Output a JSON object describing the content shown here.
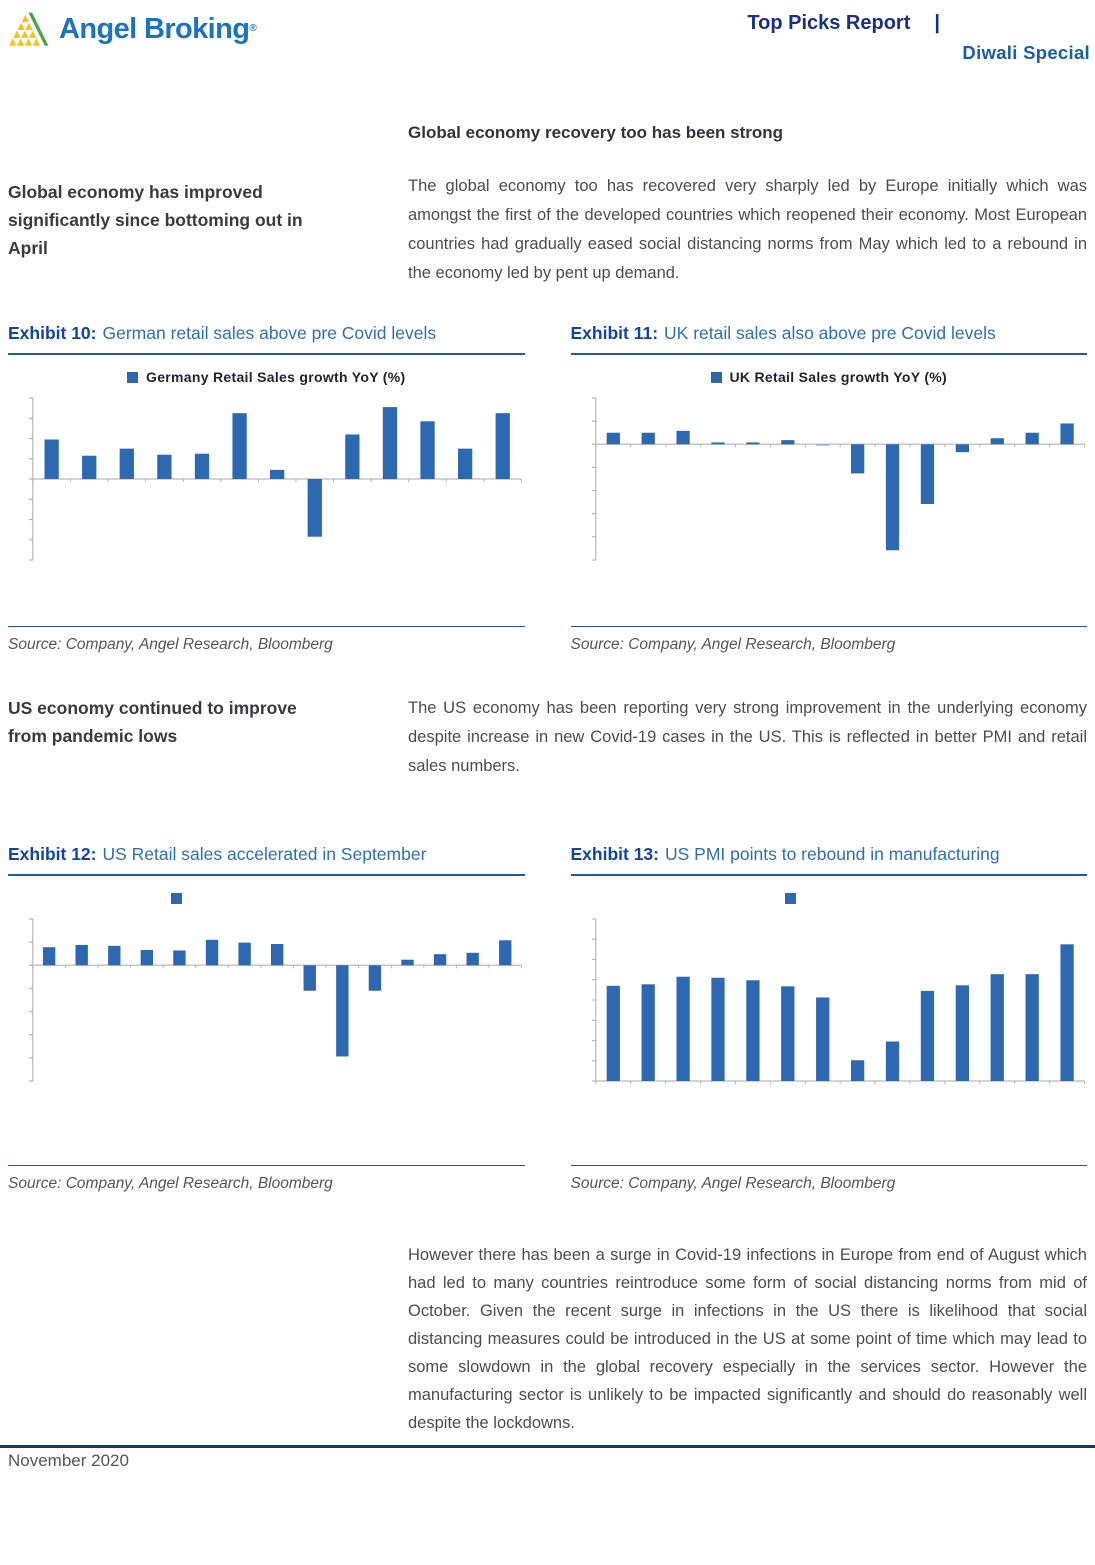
{
  "header": {
    "logo_text": "Angel Broking",
    "logo_reg": "®",
    "report_type": "Top Picks Report",
    "separator": "|",
    "report_subtitle": "Diwali Special"
  },
  "section1": {
    "sidebar_note": "Global economy has improved significantly since bottoming out in April",
    "heading": "Global economy recovery too has been strong",
    "body": "The global economy too has recovered very sharply led by Europe initially which was amongst the first of the developed countries which reopened their economy. Most European countries had gradually eased social distancing norms from May which led to a rebound in the economy led by pent up demand."
  },
  "section2": {
    "sidebar_note": "US economy continued to improve from pandemic lows",
    "body": "The US economy has been reporting very strong improvement in the underlying economy despite increase in new Covid-19 cases in the US. This is reflected in better PMI and retail sales numbers."
  },
  "section3": {
    "body": "However there has been a surge in Covid-19 infections in Europe from end of August which had led to many countries reintroduce some form of social distancing norms from mid of October. Given the recent surge in infections in the US there is likelihood that social distancing measures could be introduced in the US at some point of time which may lead to some slowdown in the global recovery especially in the services sector. However the manufacturing sector is unlikely to be impacted significantly and should do reasonably well despite the lockdowns."
  },
  "exhibits": [
    {
      "label": "Exhibit 10:",
      "title": "German retail sales above pre Covid levels",
      "legend": "Germany Retail Sales growth YoY (%)",
      "source": "Source: Company, Angel Research, Bloomberg"
    },
    {
      "label": "Exhibit 11:",
      "title": "UK retail sales also above pre Covid levels",
      "legend": "UK Retail Sales growth YoY (%)",
      "source": "Source: Company, Angel Research, Bloomberg"
    },
    {
      "label": "Exhibit 12:",
      "title": "US Retail sales accelerated in September",
      "legend": "",
      "source": "Source: Company, Angel Research, Bloomberg"
    },
    {
      "label": "Exhibit 13:",
      "title": "US PMI points to rebound in manufacturing",
      "legend": "",
      "source": "Source: Company, Angel Research, Bloomberg"
    }
  ],
  "chart_data": [
    {
      "type": "bar",
      "title": "German retail sales above pre Covid levels",
      "legend": "Germany Retail Sales growth YoY (%)",
      "values": [
        3.9,
        2.3,
        3.0,
        2.4,
        2.5,
        6.5,
        0.9,
        -5.7,
        4.4,
        7.1,
        5.7,
        3.0,
        6.5
      ],
      "x_labels_shown": false,
      "y_labels_shown": false,
      "ylim": [
        -8,
        8
      ],
      "tick_step": 2,
      "grid": false,
      "legend_position": "top-center",
      "bar_color": "#2E68B1"
    },
    {
      "type": "bar",
      "title": "UK retail sales also above pre Covid levels",
      "legend": "UK Retail Sales growth YoY (%)",
      "values": [
        2.5,
        2.5,
        2.9,
        0.4,
        0.4,
        0.9,
        -0.3,
        -6.3,
        -22.9,
        -12.9,
        -1.7,
        1.3,
        2.5,
        4.5
      ],
      "x_labels_shown": false,
      "y_labels_shown": false,
      "ylim": [
        -25,
        10
      ],
      "tick_step": 5,
      "grid": false,
      "legend_position": "top-center",
      "bar_color": "#2E68B1",
      "light_bars": [
        6
      ],
      "light_color": "#8EA9DB"
    },
    {
      "type": "bar",
      "title": "US Retail sales accelerated in September",
      "legend": "",
      "legend_marker_only": true,
      "values": [
        3.9,
        4.4,
        4.2,
        3.3,
        3.2,
        5.5,
        4.9,
        4.6,
        -5.5,
        -19.7,
        -5.5,
        1.2,
        2.4,
        2.7,
        5.4
      ],
      "x_labels_shown": false,
      "y_labels_shown": false,
      "ylim": [
        -25,
        10
      ],
      "tick_step": 5,
      "grid": false,
      "legend_position": "top-left-third",
      "bar_color": "#2E68B1"
    },
    {
      "type": "bar",
      "title": "US PMI points to rebound in manufacturing",
      "legend": "",
      "legend_marker_only": true,
      "values": [
        50.8,
        51.1,
        52.6,
        52.4,
        51.9,
        50.7,
        48.5,
        36.1,
        39.8,
        49.8,
        50.9,
        53.1,
        53.1,
        59.0
      ],
      "x_labels_shown": false,
      "y_labels_shown": false,
      "ylim": [
        32,
        64
      ],
      "tick_step": 4,
      "grid": false,
      "legend_position": "top-center-left",
      "bar_color": "#2E68B1"
    }
  ],
  "footer": {
    "date": "November 2020"
  },
  "colors": {
    "accent_navy": "#1A2F86",
    "accent_blue": "#1A5DA8",
    "exhibit_label": "#1244A8",
    "exhibit_title": "#2E70B5",
    "bar_blue": "#2E68B1",
    "bar_light_blue": "#8EA9DB",
    "rule_blue": "#2457A4",
    "footer_rule_navy": "#17357F",
    "logo_blue": "#1C74BC",
    "logo_yellow": "#F9C21A",
    "logo_green": "#44A948"
  }
}
